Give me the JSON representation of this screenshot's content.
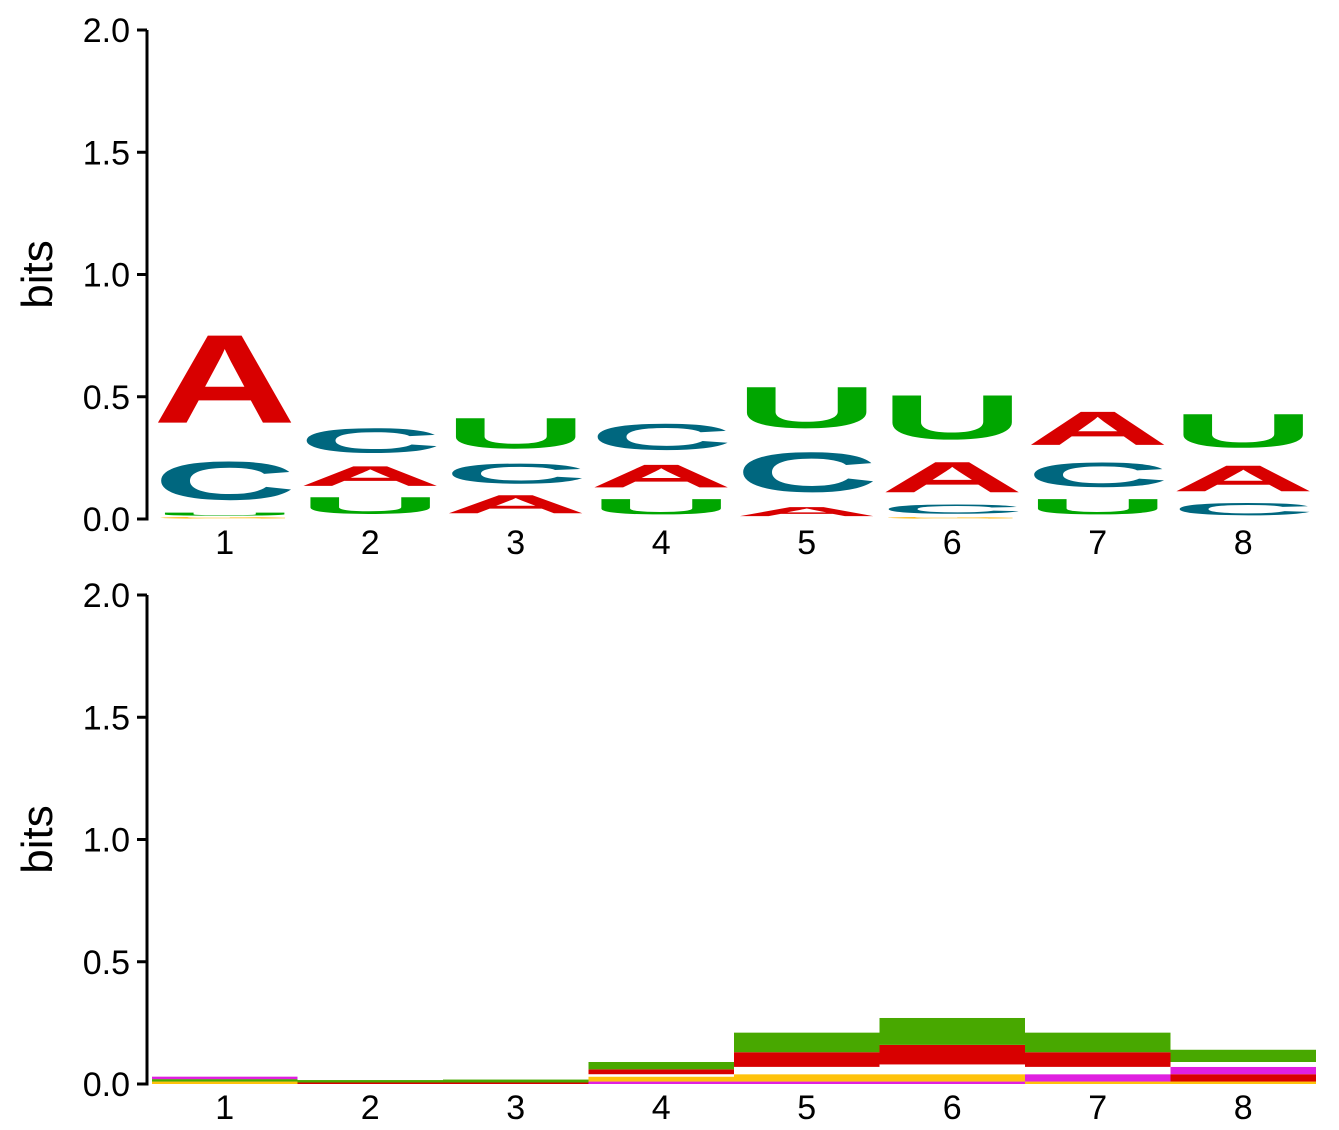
{
  "colors": {
    "A": "#d80000",
    "C": "#00677f",
    "U": "#00a600",
    "G": "#ffb500",
    "pair_green": "#48a800",
    "pair_red": "#d80000",
    "pair_yellow": "#ffc20a",
    "pair_magenta": "#e020e0",
    "pair_white": "#ffffff"
  },
  "chart_data": [
    {
      "type": "sequence-logo",
      "ylabel": "bits",
      "ylim": [
        0,
        2.0
      ],
      "yticks": [
        "0.0",
        "0.5",
        "1.0",
        "1.5",
        "2.0"
      ],
      "positions": [
        "1",
        "2",
        "3",
        "4",
        "5",
        "6",
        "7",
        "8"
      ],
      "stacks": [
        [
          {
            "letter": "G",
            "bits": 0.01
          },
          {
            "letter": "U",
            "bits": 0.02
          },
          {
            "letter": "C",
            "bits": 0.25
          },
          {
            "letter": "A",
            "bits": 0.58
          }
        ],
        [
          {
            "letter": "U",
            "bits": 0.11
          },
          {
            "letter": "A",
            "bits": 0.13
          },
          {
            "letter": "C",
            "bits": 0.16
          }
        ],
        [
          {
            "letter": "A",
            "bits": 0.12
          },
          {
            "letter": "C",
            "bits": 0.13
          },
          {
            "letter": "U",
            "bits": 0.2
          }
        ],
        [
          {
            "letter": "U",
            "bits": 0.1
          },
          {
            "letter": "A",
            "bits": 0.15
          },
          {
            "letter": "C",
            "bits": 0.17
          }
        ],
        [
          {
            "letter": "A",
            "bits": 0.06
          },
          {
            "letter": "C",
            "bits": 0.26
          },
          {
            "letter": "U",
            "bits": 0.27
          }
        ],
        [
          {
            "letter": "G",
            "bits": 0.01
          },
          {
            "letter": "C",
            "bits": 0.06
          },
          {
            "letter": "A",
            "bits": 0.2
          },
          {
            "letter": "U",
            "bits": 0.29
          }
        ],
        [
          {
            "letter": "U",
            "bits": 0.1
          },
          {
            "letter": "C",
            "bits": 0.16
          },
          {
            "letter": "A",
            "bits": 0.22
          }
        ],
        [
          {
            "letter": "C",
            "bits": 0.08
          },
          {
            "letter": "A",
            "bits": 0.17
          },
          {
            "letter": "U",
            "bits": 0.22
          }
        ]
      ]
    },
    {
      "type": "pair-logo",
      "ylabel": "bits",
      "ylim": [
        0,
        2.0
      ],
      "yticks": [
        "0.0",
        "0.5",
        "1.0",
        "1.5",
        "2.0"
      ],
      "positions": [
        "1",
        "2",
        "3",
        "4",
        "5",
        "6",
        "7",
        "8"
      ],
      "stacks": [
        [
          {
            "color": "pair_yellow",
            "bits": 0.01
          },
          {
            "color": "pair_green",
            "bits": 0.01
          },
          {
            "color": "pair_magenta",
            "bits": 0.01
          }
        ],
        [
          {
            "color": "pair_red",
            "bits": 0.005
          },
          {
            "color": "pair_green",
            "bits": 0.01
          }
        ],
        [
          {
            "color": "pair_red",
            "bits": 0.006
          },
          {
            "color": "pair_green",
            "bits": 0.012
          }
        ],
        [
          {
            "color": "pair_magenta",
            "bits": 0.01
          },
          {
            "color": "pair_yellow",
            "bits": 0.02
          },
          {
            "color": "pair_white",
            "bits": 0.01
          },
          {
            "color": "pair_red",
            "bits": 0.02
          },
          {
            "color": "pair_green",
            "bits": 0.03
          }
        ],
        [
          {
            "color": "pair_magenta",
            "bits": 0.01
          },
          {
            "color": "pair_yellow",
            "bits": 0.03
          },
          {
            "color": "pair_white",
            "bits": 0.03
          },
          {
            "color": "pair_red",
            "bits": 0.06
          },
          {
            "color": "pair_green",
            "bits": 0.08
          }
        ],
        [
          {
            "color": "pair_magenta",
            "bits": 0.01
          },
          {
            "color": "pair_yellow",
            "bits": 0.03
          },
          {
            "color": "pair_white",
            "bits": 0.04
          },
          {
            "color": "pair_red",
            "bits": 0.08
          },
          {
            "color": "pair_green",
            "bits": 0.11
          }
        ],
        [
          {
            "color": "pair_yellow",
            "bits": 0.01
          },
          {
            "color": "pair_magenta",
            "bits": 0.03
          },
          {
            "color": "pair_white",
            "bits": 0.03
          },
          {
            "color": "pair_red",
            "bits": 0.06
          },
          {
            "color": "pair_green",
            "bits": 0.08
          }
        ],
        [
          {
            "color": "pair_yellow",
            "bits": 0.01
          },
          {
            "color": "pair_red",
            "bits": 0.03
          },
          {
            "color": "pair_magenta",
            "bits": 0.03
          },
          {
            "color": "pair_white",
            "bits": 0.02
          },
          {
            "color": "pair_green",
            "bits": 0.05
          }
        ]
      ]
    }
  ]
}
